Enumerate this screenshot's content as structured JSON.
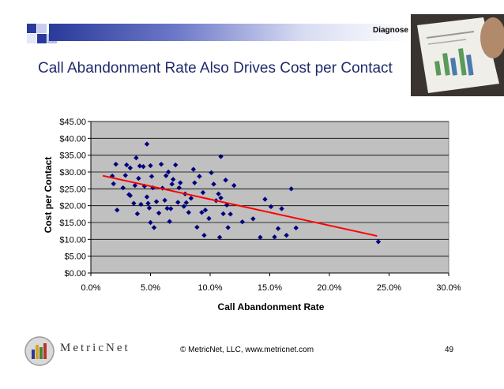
{
  "header": {
    "section_label": "Diagnose"
  },
  "slide": {
    "title": "Call Abandonment Rate Also Drives Cost per Contact"
  },
  "footer": {
    "logo_text": "MetricNet",
    "copyright": "© MetricNet, LLC, www.metricnet.com",
    "page_number": "49"
  },
  "colors": {
    "plot_bg": "#c0c0c0",
    "marker": "#000080",
    "trend": "#ff0000",
    "title": "#1f2a6b"
  },
  "chart_data": {
    "type": "scatter",
    "xlabel": "Call Abandonment Rate",
    "ylabel": "Cost per Contact",
    "xlim": [
      0,
      0.3
    ],
    "ylim": [
      0,
      45
    ],
    "x_ticks": [
      0,
      0.05,
      0.1,
      0.15,
      0.2,
      0.25,
      0.3
    ],
    "x_tick_labels": [
      "0.0%",
      "5.0%",
      "10.0%",
      "15.0%",
      "20.0%",
      "25.0%",
      "30.0%"
    ],
    "y_ticks": [
      0,
      5,
      10,
      15,
      20,
      25,
      30,
      35,
      40,
      45
    ],
    "y_tick_labels": [
      "$0.00",
      "$5.00",
      "$10.00",
      "$15.00",
      "$20.00",
      "$25.00",
      "$30.00",
      "$35.00",
      "$40.00",
      "$45.00"
    ],
    "grid": true,
    "legend": "none",
    "points": [
      [
        0.018,
        28.8
      ],
      [
        0.019,
        26.5
      ],
      [
        0.021,
        32.3
      ],
      [
        0.022,
        18.7
      ],
      [
        0.027,
        25.3
      ],
      [
        0.029,
        29.0
      ],
      [
        0.03,
        32.1
      ],
      [
        0.032,
        23.3
      ],
      [
        0.033,
        31.2
      ],
      [
        0.033,
        23.0
      ],
      [
        0.036,
        20.7
      ],
      [
        0.037,
        26.0
      ],
      [
        0.038,
        34.2
      ],
      [
        0.039,
        17.6
      ],
      [
        0.04,
        28.1
      ],
      [
        0.041,
        31.8
      ],
      [
        0.042,
        20.4
      ],
      [
        0.044,
        31.6
      ],
      [
        0.045,
        25.8
      ],
      [
        0.047,
        22.6
      ],
      [
        0.047,
        38.3
      ],
      [
        0.048,
        20.7
      ],
      [
        0.049,
        19.3
      ],
      [
        0.05,
        31.9
      ],
      [
        0.05,
        15.0
      ],
      [
        0.051,
        28.7
      ],
      [
        0.052,
        25.3
      ],
      [
        0.053,
        13.5
      ],
      [
        0.055,
        21.2
      ],
      [
        0.057,
        17.8
      ],
      [
        0.059,
        32.3
      ],
      [
        0.06,
        25.2
      ],
      [
        0.062,
        21.6
      ],
      [
        0.063,
        28.9
      ],
      [
        0.064,
        19.2
      ],
      [
        0.065,
        30.0
      ],
      [
        0.066,
        15.3
      ],
      [
        0.067,
        19.1
      ],
      [
        0.068,
        26.4
      ],
      [
        0.069,
        27.8
      ],
      [
        0.071,
        32.1
      ],
      [
        0.073,
        21.0
      ],
      [
        0.074,
        25.3
      ],
      [
        0.075,
        26.8
      ],
      [
        0.078,
        19.8
      ],
      [
        0.079,
        23.5
      ],
      [
        0.08,
        20.9
      ],
      [
        0.082,
        18.0
      ],
      [
        0.084,
        22.2
      ],
      [
        0.086,
        30.8
      ],
      [
        0.087,
        26.8
      ],
      [
        0.089,
        13.6
      ],
      [
        0.091,
        28.7
      ],
      [
        0.093,
        18.0
      ],
      [
        0.094,
        23.9
      ],
      [
        0.095,
        11.2
      ],
      [
        0.096,
        18.7
      ],
      [
        0.099,
        16.2
      ],
      [
        0.101,
        29.8
      ],
      [
        0.103,
        26.4
      ],
      [
        0.105,
        21.5
      ],
      [
        0.107,
        23.5
      ],
      [
        0.108,
        10.6
      ],
      [
        0.109,
        34.6
      ],
      [
        0.109,
        22.3
      ],
      [
        0.111,
        17.6
      ],
      [
        0.113,
        27.6
      ],
      [
        0.114,
        20.2
      ],
      [
        0.115,
        13.5
      ],
      [
        0.117,
        17.5
      ],
      [
        0.12,
        26.0
      ],
      [
        0.127,
        15.2
      ],
      [
        0.136,
        16.1
      ],
      [
        0.142,
        10.6
      ],
      [
        0.146,
        21.9
      ],
      [
        0.151,
        19.7
      ],
      [
        0.154,
        10.7
      ],
      [
        0.157,
        13.2
      ],
      [
        0.16,
        19.1
      ],
      [
        0.164,
        11.2
      ],
      [
        0.168,
        25.0
      ],
      [
        0.172,
        13.4
      ],
      [
        0.241,
        9.3
      ]
    ],
    "trendline": {
      "x": [
        0.01,
        0.24
      ],
      "y": [
        28.9,
        11.0
      ]
    }
  }
}
